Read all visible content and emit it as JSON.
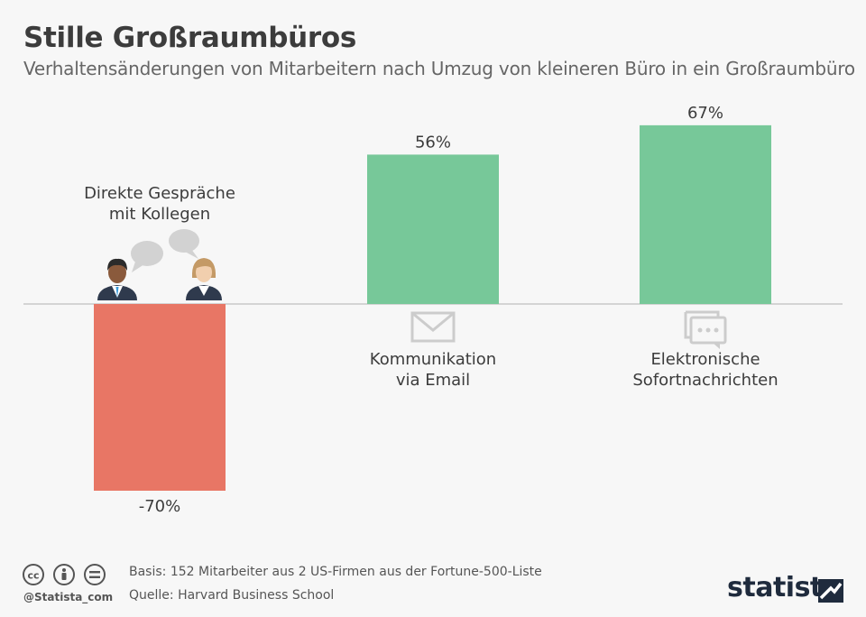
{
  "header": {
    "title": "Stille Großraumbüros",
    "subtitle": "Verhaltensänderungen von Mitarbeitern nach Umzug von kleineren Büro in ein Großraumbüro"
  },
  "chart_data": {
    "type": "bar",
    "categories": [
      [
        "Direkte Gespräche",
        "mit Kollegen"
      ],
      [
        "Kommunikation",
        "via Email"
      ],
      [
        "Elektronische",
        "Sofortnachrichten"
      ]
    ],
    "values": [
      -70,
      56,
      67
    ],
    "value_labels": [
      "-70%",
      "56%",
      "67%"
    ],
    "icons": [
      "people-talking-icon",
      "envelope-icon",
      "chat-bubble-icon"
    ],
    "colors": {
      "negative": "#e87665",
      "positive": "#77c899",
      "baseline": "#c8c8c8",
      "icon": "#cccccc"
    },
    "ylim": [
      -70,
      67
    ],
    "grid": false
  },
  "footer": {
    "basis": "Basis: 152 Mitarbeiter aus 2 US-Firmen aus der Fortune-500-Liste",
    "source": "Quelle: Harvard Business School",
    "handle": "@Statista_com",
    "brand": "statista"
  }
}
